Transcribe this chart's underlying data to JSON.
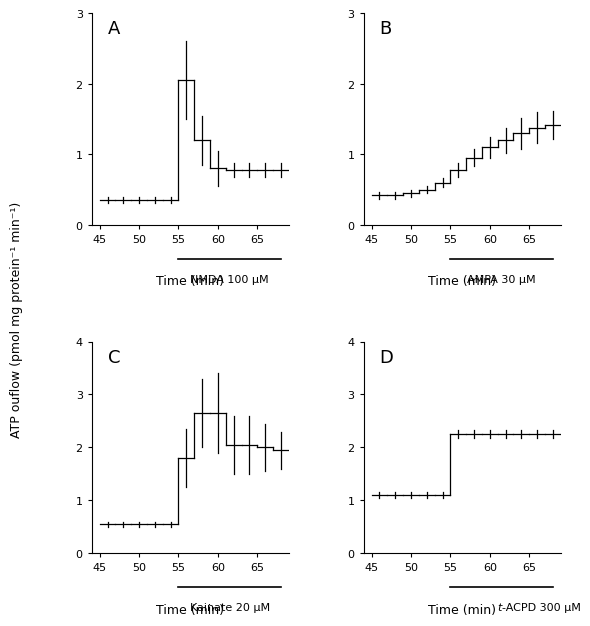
{
  "panels": [
    {
      "label": "A",
      "drug_label": "NMDA 100 μM",
      "italic_prefix": false,
      "ylim": [
        0,
        3
      ],
      "yticks": [
        0,
        1,
        2,
        3
      ],
      "drug_start": 55,
      "drug_end": 68,
      "x": [
        46,
        48,
        50,
        52,
        54,
        56,
        58,
        60,
        62,
        64,
        66,
        68
      ],
      "y": [
        0.35,
        0.35,
        0.35,
        0.35,
        0.35,
        2.05,
        1.2,
        0.8,
        0.78,
        0.78,
        0.78,
        0.78
      ],
      "yerr": [
        0.04,
        0.04,
        0.04,
        0.04,
        0.04,
        0.55,
        0.35,
        0.25,
        0.1,
        0.1,
        0.1,
        0.1
      ]
    },
    {
      "label": "B",
      "drug_label": "AMPA 30 μM",
      "italic_prefix": false,
      "ylim": [
        0,
        3
      ],
      "yticks": [
        0,
        1,
        2,
        3
      ],
      "drug_start": 55,
      "drug_end": 68,
      "x": [
        46,
        48,
        50,
        52,
        54,
        56,
        58,
        60,
        62,
        64,
        66,
        68
      ],
      "y": [
        0.42,
        0.42,
        0.45,
        0.5,
        0.6,
        0.78,
        0.95,
        1.1,
        1.2,
        1.3,
        1.38,
        1.42
      ],
      "yerr": [
        0.05,
        0.05,
        0.05,
        0.05,
        0.06,
        0.1,
        0.12,
        0.15,
        0.18,
        0.22,
        0.22,
        0.2
      ]
    },
    {
      "label": "C",
      "drug_label": "Kainate 20 μM",
      "italic_prefix": false,
      "ylim": [
        0,
        4
      ],
      "yticks": [
        0,
        1,
        2,
        3,
        4
      ],
      "drug_start": 55,
      "drug_end": 68,
      "x": [
        46,
        48,
        50,
        52,
        54,
        56,
        58,
        60,
        62,
        64,
        66,
        68
      ],
      "y": [
        0.55,
        0.55,
        0.55,
        0.55,
        0.55,
        1.8,
        2.65,
        2.65,
        2.05,
        2.05,
        2.0,
        1.95
      ],
      "yerr": [
        0.05,
        0.05,
        0.05,
        0.05,
        0.05,
        0.55,
        0.65,
        0.75,
        0.55,
        0.55,
        0.45,
        0.35
      ]
    },
    {
      "label": "D",
      "drug_label": "-ACPD 300 μM",
      "drug_label_prefix": "t",
      "italic_prefix": true,
      "ylim": [
        0,
        4
      ],
      "yticks": [
        0,
        1,
        2,
        3,
        4
      ],
      "drug_start": 55,
      "drug_end": 68,
      "x": [
        46,
        48,
        50,
        52,
        54,
        56,
        58,
        60,
        62,
        64,
        66,
        68
      ],
      "y": [
        1.1,
        1.1,
        1.1,
        1.1,
        1.1,
        2.25,
        2.25,
        2.25,
        2.25,
        2.25,
        2.25,
        2.25
      ],
      "yerr": [
        0.05,
        0.05,
        0.05,
        0.05,
        0.05,
        0.08,
        0.08,
        0.08,
        0.08,
        0.08,
        0.08,
        0.08
      ]
    }
  ],
  "xlim": [
    44,
    69
  ],
  "xticks": [
    45,
    50,
    55,
    60,
    65
  ],
  "xlabel": "Time (min)",
  "ylabel": "ATP ouflow (pmol mg protein⁻¹ min⁻¹)",
  "background_color": "#ffffff",
  "line_color": "#000000"
}
